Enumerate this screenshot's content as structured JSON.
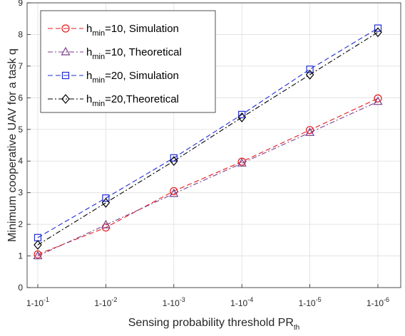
{
  "chart_data": {
    "type": "line",
    "xlabel": "Sensing probability threshold PR",
    "xlabel_sub": "th",
    "ylabel": "Minimum cooperative UAV for a task q",
    "ylim": [
      0,
      9
    ],
    "yticks": [
      "0",
      "1",
      "2",
      "3",
      "4",
      "5",
      "6",
      "7",
      "8",
      "9"
    ],
    "x": [
      "1-10^-1",
      "1-10^-2",
      "1-10^-3",
      "1-10^-4",
      "1-10^-5",
      "1-10^-6"
    ],
    "x_tick_labels": [
      {
        "base": "1-10",
        "exp": "-1"
      },
      {
        "base": "1-10",
        "exp": "-2"
      },
      {
        "base": "1-10",
        "exp": "-3"
      },
      {
        "base": "1-10",
        "exp": "-4"
      },
      {
        "base": "1-10",
        "exp": "-5"
      },
      {
        "base": "1-10",
        "exp": "-6"
      }
    ],
    "grid": true,
    "legend_position": "top-left",
    "series": [
      {
        "name": "h_min=10, Simulation",
        "legend_main": "h",
        "legend_sub": "min",
        "legend_rest": "=10, Simulation",
        "color": "#e31a1c",
        "marker": "circle",
        "dash": "dash",
        "values": [
          1.05,
          1.9,
          3.05,
          3.98,
          4.98,
          5.98
        ]
      },
      {
        "name": "h_min=10, Theoretical",
        "legend_main": "h",
        "legend_sub": "min",
        "legend_rest": "=10, Theoretical",
        "color": "#7b3f8a",
        "marker": "triangle",
        "dash": "dashdot",
        "values": [
          1.0,
          1.98,
          2.97,
          3.93,
          4.9,
          5.88
        ]
      },
      {
        "name": "h_min=20, Simulation",
        "legend_main": "h",
        "legend_sub": "min",
        "legend_rest": "=20, Simulation",
        "color": "#1f2bd6",
        "marker": "square",
        "dash": "dash",
        "values": [
          1.58,
          2.83,
          4.1,
          5.47,
          6.9,
          8.2
        ]
      },
      {
        "name": "h_min=20,Theoretical",
        "legend_main": "h",
        "legend_sub": "min",
        "legend_rest": "=20,Theoretical",
        "color": "#000000",
        "marker": "diamond",
        "dash": "dashdot",
        "values": [
          1.35,
          2.68,
          4.0,
          5.38,
          6.73,
          8.07
        ]
      }
    ]
  }
}
